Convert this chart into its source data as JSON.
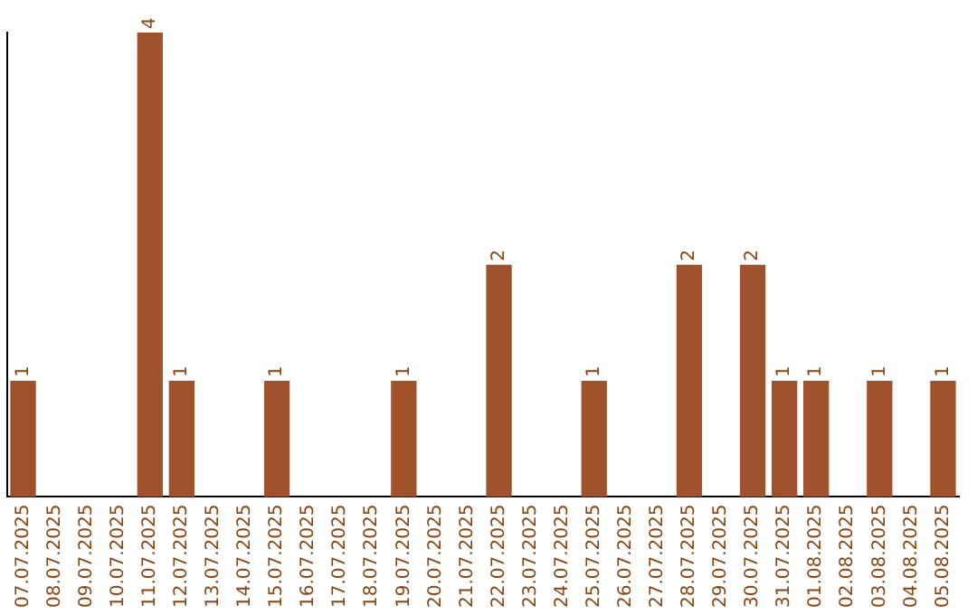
{
  "chart_data": {
    "type": "bar",
    "categories": [
      "07.07.2025",
      "08.07.2025",
      "09.07.2025",
      "10.07.2025",
      "11.07.2025",
      "12.07.2025",
      "13.07.2025",
      "14.07.2025",
      "15.07.2025",
      "16.07.2025",
      "17.07.2025",
      "18.07.2025",
      "19.07.2025",
      "20.07.2025",
      "21.07.2025",
      "22.07.2025",
      "23.07.2025",
      "24.07.2025",
      "25.07.2025",
      "26.07.2025",
      "27.07.2025",
      "28.07.2025",
      "29.07.2025",
      "30.07.2025",
      "31.07.2025",
      "01.08.2025",
      "02.08.2025",
      "03.08.2025",
      "04.08.2025",
      "05.08.2025"
    ],
    "values": [
      1,
      0,
      0,
      0,
      4,
      1,
      0,
      0,
      1,
      0,
      0,
      0,
      1,
      0,
      0,
      2,
      0,
      0,
      1,
      0,
      0,
      2,
      0,
      2,
      1,
      1,
      0,
      1,
      0,
      1
    ],
    "value_labels": [
      "1",
      null,
      null,
      null,
      "4",
      "1",
      null,
      null,
      "1",
      null,
      null,
      null,
      "1",
      null,
      null,
      "2",
      null,
      null,
      "1",
      null,
      null,
      "2",
      null,
      "2",
      "1",
      "1",
      null,
      "1",
      null,
      "1"
    ],
    "color": "#a0522d",
    "grid": false,
    "legend": false,
    "tick_labels": "x"
  }
}
